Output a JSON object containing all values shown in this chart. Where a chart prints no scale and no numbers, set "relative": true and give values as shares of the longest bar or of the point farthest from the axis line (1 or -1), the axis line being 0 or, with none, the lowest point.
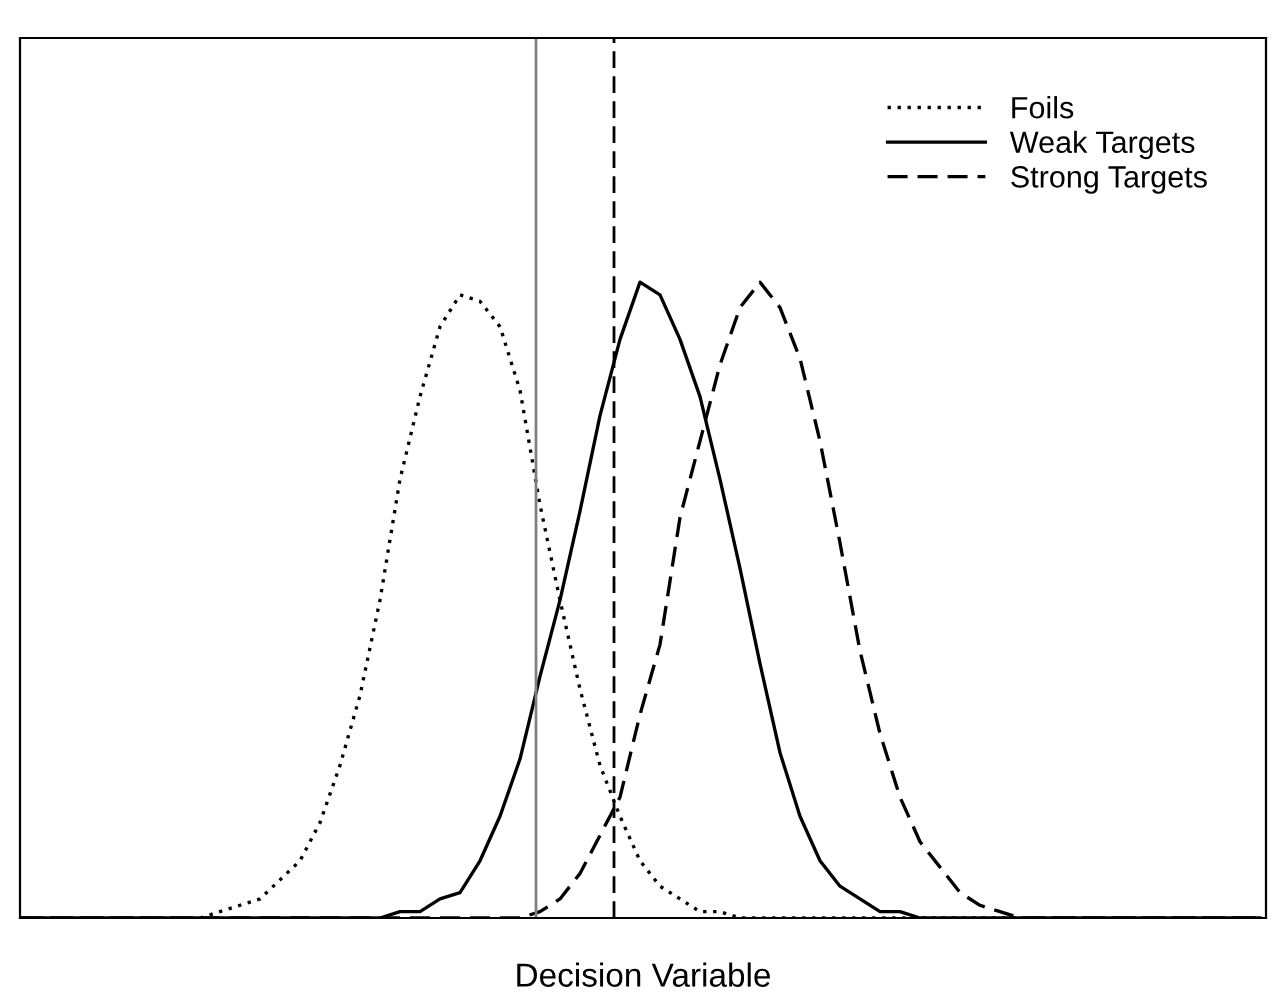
{
  "chart_data": {
    "type": "line",
    "xlabel": "Decision Variable",
    "relative": true,
    "legend": "top right",
    "marker": "none",
    "categories": [
      null,
      null,
      null,
      null,
      null,
      null,
      null,
      null,
      null,
      null,
      null,
      null,
      null,
      null,
      null,
      null,
      null,
      null,
      null,
      null,
      null,
      null,
      null,
      null,
      null,
      null,
      null,
      null,
      null,
      null,
      null,
      null,
      null,
      null,
      null,
      null,
      null,
      null,
      null,
      null,
      null,
      null,
      null,
      null,
      null,
      null,
      null,
      null,
      null,
      null,
      null,
      null,
      null,
      null,
      null,
      null,
      null,
      null,
      null,
      null,
      null,
      null,
      null
    ],
    "series": [
      {
        "name": "Foils",
        "color": "#000000",
        "line_style": "dotted",
        "values": [
          0,
          0,
          0,
          0,
          0,
          0,
          0,
          0,
          0,
          0,
          0.01,
          0.02,
          0.03,
          0.06,
          0.09,
          0.15,
          0.24,
          0.35,
          0.5,
          0.69,
          0.82,
          0.93,
          0.98,
          0.97,
          0.93,
          0.83,
          0.65,
          0.5,
          0.36,
          0.24,
          0.16,
          0.09,
          0.05,
          0.03,
          0.01,
          0.01,
          0,
          0,
          0,
          0,
          0,
          0,
          0,
          0,
          0,
          0,
          0,
          0,
          0,
          0,
          0,
          0,
          0,
          0,
          0,
          0,
          0,
          0,
          0,
          0,
          0,
          0,
          0
        ]
      },
      {
        "name": "Weak Targets",
        "color": "#000000",
        "line_style": "solid",
        "values": [
          0,
          0,
          0,
          0,
          0,
          0,
          0,
          0,
          0,
          0,
          0,
          0,
          0,
          0,
          0,
          0,
          0,
          0,
          0,
          0.01,
          0.01,
          0.03,
          0.04,
          0.09,
          0.16,
          0.25,
          0.38,
          0.5,
          0.64,
          0.79,
          0.91,
          1.0,
          0.98,
          0.91,
          0.82,
          0.69,
          0.55,
          0.4,
          0.26,
          0.16,
          0.09,
          0.05,
          0.03,
          0.01,
          0.01,
          0,
          0,
          0,
          0,
          0,
          0,
          0,
          0,
          0,
          0,
          0,
          0,
          0,
          0,
          0,
          0,
          0,
          0
        ]
      },
      {
        "name": "Strong Targets",
        "color": "#000000",
        "line_style": "dashed",
        "values": [
          0,
          0,
          0,
          0,
          0,
          0,
          0,
          0,
          0,
          0,
          0,
          0,
          0,
          0,
          0,
          0,
          0,
          0,
          0,
          0,
          0,
          0,
          0,
          0,
          0,
          0,
          0.01,
          0.03,
          0.07,
          0.13,
          0.19,
          0.32,
          0.43,
          0.63,
          0.75,
          0.87,
          0.96,
          1.0,
          0.96,
          0.88,
          0.75,
          0.59,
          0.42,
          0.29,
          0.19,
          0.12,
          0.08,
          0.04,
          0.02,
          0.01,
          0,
          0,
          0,
          0,
          0,
          0,
          0,
          0,
          0,
          0,
          0,
          0,
          0
        ]
      }
    ]
  }
}
